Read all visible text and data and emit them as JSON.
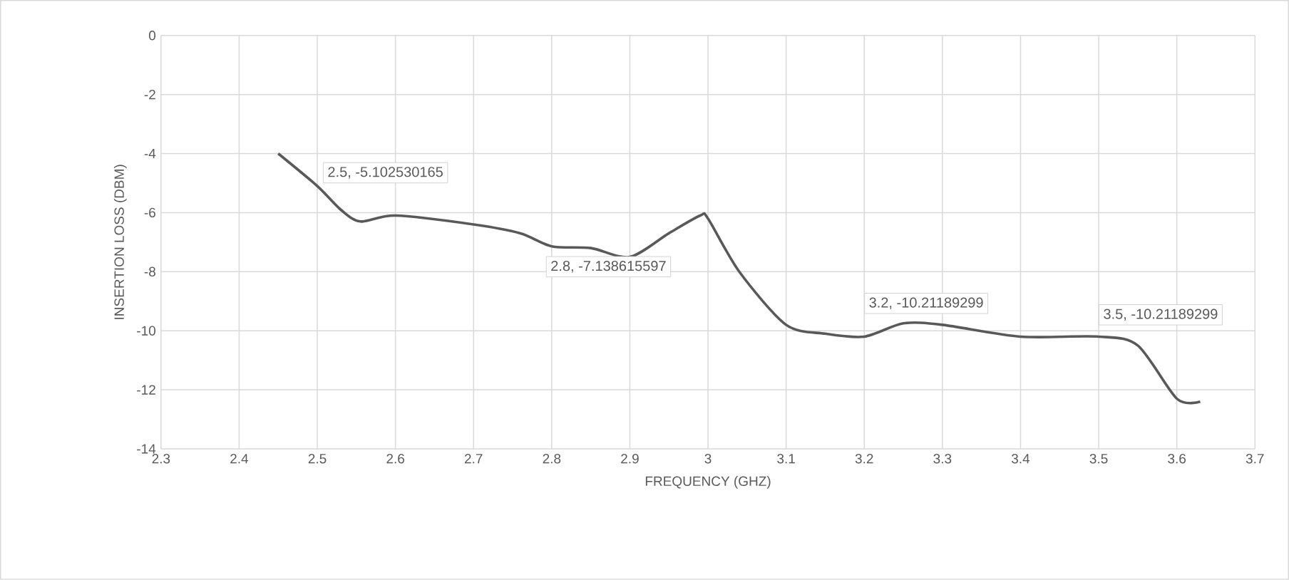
{
  "chart_data": {
    "type": "line",
    "xlabel": "FREQUENCY (GHZ)",
    "ylabel": "INSERTION LOSS (DBM)",
    "xlim": [
      2.3,
      3.7
    ],
    "xticks": [
      2.3,
      2.4,
      2.5,
      2.6,
      2.7,
      2.8,
      2.9,
      3,
      3.1,
      3.2,
      3.3,
      3.4,
      3.5,
      3.6,
      3.7
    ],
    "ylim": [
      -14,
      0
    ],
    "yticks": [
      -14,
      -12,
      -10,
      -8,
      -6,
      -4,
      -2,
      0
    ],
    "grid": true,
    "marker": "none",
    "line_style": "solid",
    "series": [
      {
        "color": "#595959",
        "x": [
          2.45,
          2.5,
          2.53,
          2.555,
          2.6,
          2.7,
          2.76,
          2.8,
          2.85,
          2.9,
          2.95,
          2.99,
          3.0,
          3.04,
          3.1,
          3.15,
          3.2,
          3.25,
          3.3,
          3.4,
          3.5,
          3.55,
          3.6,
          3.63
        ],
        "values": [
          -4.0,
          -5.1,
          -5.9,
          -6.3,
          -6.1,
          -6.4,
          -6.7,
          -7.14,
          -7.2,
          -7.5,
          -6.7,
          -6.1,
          -6.2,
          -8.0,
          -9.8,
          -10.1,
          -10.2,
          -9.75,
          -9.8,
          -10.2,
          -10.2,
          -10.5,
          -12.3,
          -12.4
        ]
      }
    ],
    "annotations": [
      {
        "text": "2.5, -5.102530165",
        "x": 2.5,
        "y": -5.1
      },
      {
        "text": "2.8, -7.138615597",
        "x": 2.8,
        "y": -7.14
      },
      {
        "text": "3.2, -10.21189299",
        "x": 3.2,
        "y": -10.2
      },
      {
        "text": "3.5, -10.21189299",
        "x": 3.5,
        "y": -10.2
      }
    ]
  }
}
